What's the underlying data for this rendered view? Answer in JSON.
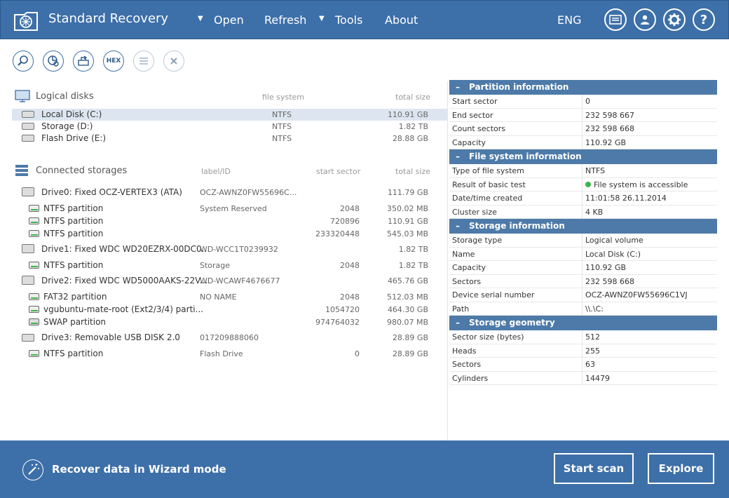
{
  "app": {
    "title": "Standard Recovery",
    "language": "ENG"
  },
  "menu": {
    "open": "Open",
    "refresh": "Refresh",
    "tools": "Tools",
    "about": "About"
  },
  "toolbar": {
    "hex_label": "HEX"
  },
  "logical_disks": {
    "title": "Logical disks",
    "col_fs": "file system",
    "col_size": "total size",
    "items": [
      {
        "name": "Local Disk (C:)",
        "fs": "NTFS",
        "size": "110.91 GB"
      },
      {
        "name": "Storage (D:)",
        "fs": "NTFS",
        "size": "1.82 TB"
      },
      {
        "name": "Flash Drive (E:)",
        "fs": "NTFS",
        "size": "28.88 GB"
      }
    ]
  },
  "connected_storages": {
    "title": "Connected storages",
    "col_label": "label/ID",
    "col_start": "start sector",
    "col_size": "total size",
    "rows": [
      {
        "name": "Drive0: Fixed OCZ-VERTEX3 (ATA)",
        "label": "OCZ-AWNZ0FW55696C...",
        "start": "",
        "size": "111.79 GB"
      },
      {
        "name": "NTFS partition",
        "label": "System Reserved",
        "start": "2048",
        "size": "350.02 MB"
      },
      {
        "name": "NTFS partition",
        "label": "",
        "start": "720896",
        "size": "110.91 GB"
      },
      {
        "name": "NTFS partition",
        "label": "",
        "start": "233320448",
        "size": "545.03 MB"
      },
      {
        "name": "Drive1: Fixed WDC WD20EZRX-00DC0...",
        "label": "WD-WCC1T0239932",
        "start": "",
        "size": "1.82 TB"
      },
      {
        "name": "NTFS partition",
        "label": "Storage",
        "start": "2048",
        "size": "1.82 TB"
      },
      {
        "name": "Drive2: Fixed WDC WD5000AAKS-22V...",
        "label": "WD-WCAWF4676677",
        "start": "",
        "size": "465.76 GB"
      },
      {
        "name": "FAT32 partition",
        "label": "NO NAME",
        "start": "2048",
        "size": "512.03 MB"
      },
      {
        "name": "vgubuntu-mate-root (Ext2/3/4) parti...",
        "label": "",
        "start": "1054720",
        "size": "464.30 GB"
      },
      {
        "name": "SWAP partition",
        "label": "",
        "start": "974764032",
        "size": "980.07 MB"
      },
      {
        "name": "Drive3: Removable USB DISK 2.0",
        "label": "017209888060",
        "start": "",
        "size": "28.89 GB"
      },
      {
        "name": "NTFS partition",
        "label": "Flash Drive",
        "start": "0",
        "size": "28.89 GB"
      }
    ]
  },
  "info": {
    "partition": {
      "title": "Partition information",
      "rows": [
        {
          "k": "Start sector",
          "v": "0"
        },
        {
          "k": "End sector",
          "v": "232 598 667"
        },
        {
          "k": "Count sectors",
          "v": "232 598 668"
        },
        {
          "k": "Capacity",
          "v": "110.92 GB"
        }
      ]
    },
    "filesystem": {
      "title": "File system information",
      "rows": [
        {
          "k": "Type of file system",
          "v": "NTFS"
        },
        {
          "k": "Result of basic test",
          "v": "File system is accessible"
        },
        {
          "k": "Date/time created",
          "v": "11:01:58 26.11.2014"
        },
        {
          "k": "Cluster size",
          "v": "4 KB"
        }
      ]
    },
    "storage": {
      "title": "Storage information",
      "rows": [
        {
          "k": "Storage type",
          "v": "Logical volume"
        },
        {
          "k": "Name",
          "v": "Local Disk (C:)"
        },
        {
          "k": "Capacity",
          "v": "110.92 GB"
        },
        {
          "k": "Sectors",
          "v": "232 598 668"
        },
        {
          "k": "Device serial number",
          "v": "OCZ-AWNZ0FW55696C1VJ"
        },
        {
          "k": "Path",
          "v": "\\\\.\\C:"
        }
      ]
    },
    "geometry": {
      "title": "Storage geometry",
      "rows": [
        {
          "k": "Sector size (bytes)",
          "v": "512"
        },
        {
          "k": "Heads",
          "v": "255"
        },
        {
          "k": "Sectors",
          "v": "63"
        },
        {
          "k": "Cylinders",
          "v": "14479"
        }
      ]
    }
  },
  "bottom": {
    "wizard_text": "Recover data in Wizard mode",
    "start_scan": "Start scan",
    "explore": "Explore"
  }
}
